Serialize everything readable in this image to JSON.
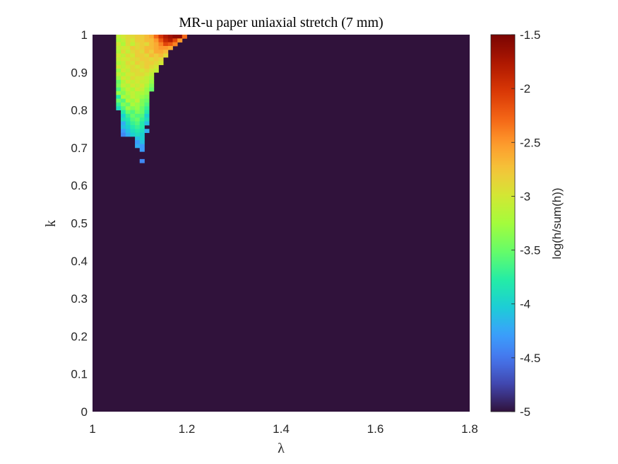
{
  "chart_data": {
    "type": "heatmap",
    "title": "MR-u paper uniaxial stretch (7 mm)",
    "xlabel": "λ",
    "ylabel": "k",
    "xlim": [
      1,
      1.8
    ],
    "ylim": [
      0,
      1
    ],
    "x_ticks": [
      "1",
      "1.2",
      "1.4",
      "1.6",
      "1.8"
    ],
    "y_ticks": [
      "0",
      "0.1",
      "0.2",
      "0.3",
      "0.4",
      "0.5",
      "0.6",
      "0.7",
      "0.8",
      "0.9",
      "1"
    ],
    "background_value": -5,
    "cell_size": {
      "dx": 0.01,
      "dk": 0.01
    },
    "colorbar": {
      "label": "log(h/sum(h))",
      "range": [
        -5,
        -1.5
      ],
      "ticks": [
        "-1.5",
        "-2",
        "-2.5",
        "-3",
        "-3.5",
        "-4",
        "-4.5",
        "-5"
      ],
      "colormap": "turbo"
    },
    "rows": [
      {
        "k": 0.995,
        "x_start": 1.05,
        "values": [
          -3.1,
          -3.0,
          -2.9,
          -2.9,
          -2.8,
          -2.8,
          -2.7,
          -2.6,
          -2.3,
          -2.0,
          -1.8,
          -1.7,
          -1.6,
          -1.6,
          -2.3
        ]
      },
      {
        "k": 0.985,
        "x_start": 1.05,
        "values": [
          -3.2,
          -3.1,
          -2.9,
          -3.0,
          -2.8,
          -2.8,
          -2.7,
          -2.7,
          -2.5,
          -2.2,
          -1.9,
          -1.8,
          -2.1,
          -2.5
        ]
      },
      {
        "k": 0.975,
        "x_start": 1.05,
        "values": [
          -3.0,
          -3.2,
          -2.9,
          -3.1,
          -2.9,
          -2.8,
          -2.9,
          -2.7,
          -2.6,
          -2.4,
          -2.1,
          -2.2,
          -2.4
        ]
      },
      {
        "k": 0.965,
        "x_start": 1.05,
        "values": [
          -3.1,
          -3.0,
          -3.0,
          -2.8,
          -2.9,
          -2.8,
          -2.7,
          -2.7,
          -2.6,
          -2.5,
          -2.5,
          -2.6
        ]
      },
      {
        "k": 0.955,
        "x_start": 1.05,
        "values": [
          -3.2,
          -2.9,
          -3.1,
          -2.9,
          -2.8,
          -2.9,
          -2.7,
          -2.8,
          -2.6,
          -2.6,
          -2.7
        ]
      },
      {
        "k": 0.945,
        "x_start": 1.05,
        "values": [
          -3.0,
          -3.1,
          -2.9,
          -3.0,
          -2.8,
          -2.8,
          -2.9,
          -2.7,
          -2.8,
          -2.7,
          -2.9
        ]
      },
      {
        "k": 0.935,
        "x_start": 1.05,
        "values": [
          -3.1,
          -3.0,
          -3.0,
          -2.9,
          -2.9,
          -2.8,
          -2.8,
          -2.9,
          -2.8,
          -2.9
        ]
      },
      {
        "k": 0.925,
        "x_start": 1.05,
        "values": [
          -3.2,
          -3.1,
          -2.9,
          -3.0,
          -2.8,
          -2.9,
          -2.8,
          -2.8,
          -2.9,
          -3.0
        ]
      },
      {
        "k": 0.915,
        "x_start": 1.05,
        "values": [
          -3.0,
          -3.1,
          -3.0,
          -2.9,
          -3.0,
          -2.9,
          -2.8,
          -2.9,
          -3.0
        ]
      },
      {
        "k": 0.905,
        "x_start": 1.05,
        "values": [
          -3.3,
          -3.0,
          -3.1,
          -2.9,
          -2.9,
          -3.0,
          -2.9,
          -3.0,
          -3.1
        ]
      },
      {
        "k": 0.895,
        "x_start": 1.05,
        "values": [
          -3.1,
          -3.2,
          -3.0,
          -3.0,
          -2.9,
          -2.9,
          -3.0,
          -3.1
        ]
      },
      {
        "k": 0.885,
        "x_start": 1.05,
        "values": [
          -3.3,
          -3.0,
          -3.1,
          -2.9,
          -3.0,
          -3.0,
          -3.1,
          -3.2
        ]
      },
      {
        "k": 0.875,
        "x_start": 1.05,
        "values": [
          -3.5,
          -3.2,
          -3.0,
          -3.1,
          -3.0,
          -3.1,
          -3.1,
          -3.3
        ]
      },
      {
        "k": 0.865,
        "x_start": 1.05,
        "values": [
          -3.4,
          -3.1,
          -3.2,
          -3.0,
          -3.1,
          -3.0,
          -3.2,
          -3.4
        ]
      },
      {
        "k": 0.855,
        "x_start": 1.05,
        "values": [
          -3.6,
          -3.3,
          -3.1,
          -3.2,
          -3.0,
          -3.1,
          -3.3,
          -3.5
        ]
      },
      {
        "k": 0.845,
        "x_start": 1.05,
        "values": [
          -3.3,
          -3.4,
          -3.2,
          -3.1,
          -3.2,
          -3.2,
          -3.3
        ]
      },
      {
        "k": 0.835,
        "x_start": 1.05,
        "values": [
          -3.8,
          -3.2,
          -3.3,
          -3.1,
          -3.2,
          -3.3,
          -3.4
        ]
      },
      {
        "k": 0.825,
        "x_start": 1.05,
        "values": [
          -3.5,
          -3.6,
          -3.2,
          -3.3,
          -3.1,
          -3.4,
          -3.5
        ]
      },
      {
        "k": 0.815,
        "x_start": 1.05,
        "values": [
          -3.7,
          -3.4,
          -3.5,
          -3.2,
          -3.3,
          -3.4,
          -3.6
        ]
      },
      {
        "k": 0.805,
        "x_start": 1.05,
        "values": [
          -3.9,
          -3.6,
          -3.3,
          -3.4,
          -3.3,
          -3.5,
          -3.7
        ]
      },
      {
        "k": 0.795,
        "x_start": 1.06,
        "values": [
          -3.8,
          -3.5,
          -3.6,
          -3.4,
          -3.5,
          -3.8
        ]
      },
      {
        "k": 0.785,
        "x_start": 1.06,
        "values": [
          -4.0,
          -3.7,
          -3.5,
          -3.6,
          -3.6,
          -4.0
        ]
      },
      {
        "k": 0.775,
        "x_start": 1.06,
        "values": [
          -3.9,
          -3.8,
          -3.6,
          -3.5,
          -3.7,
          -3.9
        ]
      },
      {
        "k": 0.765,
        "x_start": 1.06,
        "values": [
          -4.2,
          -3.9,
          -3.7,
          -3.6,
          -3.8,
          -4.1
        ]
      },
      {
        "k": 0.755,
        "x_start": 1.06,
        "values": [
          -4.1,
          -4.0,
          -3.8,
          -3.7,
          -3.8
        ]
      },
      {
        "k": 0.745,
        "x_start": 1.06,
        "values": [
          -4.3,
          -4.1,
          -3.9,
          -3.8,
          -3.9,
          -4.2
        ]
      },
      {
        "k": 0.735,
        "x_start": 1.06,
        "values": [
          -4.4,
          -4.2,
          -4.0,
          -3.9,
          -4.0
        ]
      },
      {
        "k": 0.725,
        "x_start": 1.09,
        "values": [
          -4.1,
          -4.0
        ]
      },
      {
        "k": 0.715,
        "x_start": 1.09,
        "values": [
          -4.3,
          -4.1
        ]
      },
      {
        "k": 0.705,
        "x_start": 1.09,
        "values": [
          -4.2,
          -4.3
        ]
      },
      {
        "k": 0.695,
        "x_start": 1.1,
        "values": [
          -4.3
        ]
      },
      {
        "k": 0.665,
        "x_start": 1.1,
        "values": [
          -4.4
        ]
      }
    ]
  }
}
